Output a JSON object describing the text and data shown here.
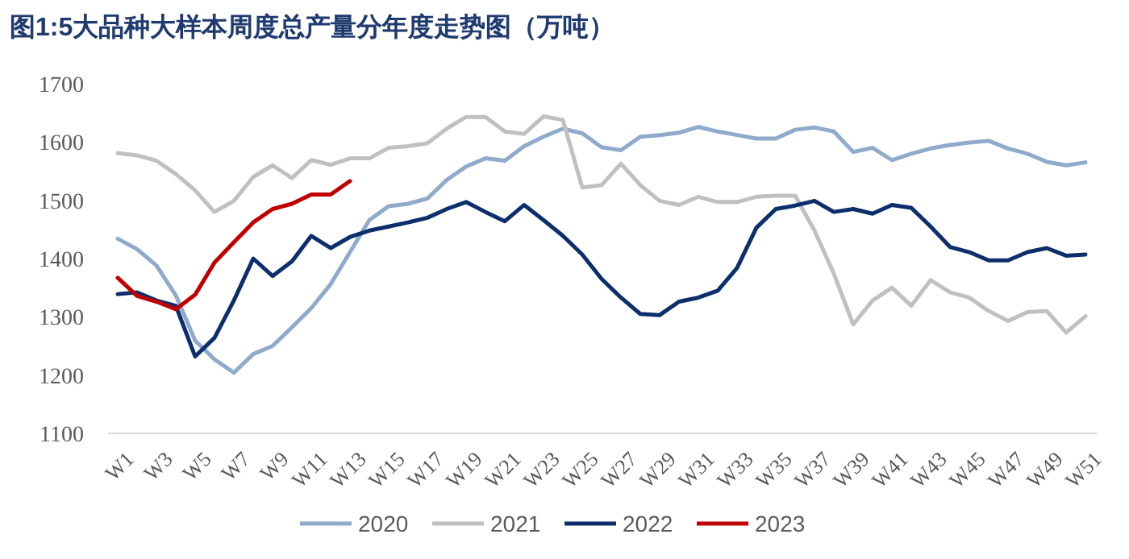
{
  "chart_data": {
    "type": "line",
    "title": "图1:5大品种大样本周度总产量分年度走势图（万吨）",
    "categories": [
      "W1",
      null,
      "W3",
      null,
      "W5",
      null,
      "W7",
      null,
      "W9",
      null,
      "W11",
      null,
      "W13",
      null,
      "W15",
      null,
      "W17",
      null,
      "W19",
      null,
      "W21",
      null,
      "W23",
      null,
      "W25",
      null,
      "W27",
      null,
      "W29",
      null,
      "W31",
      null,
      "W33",
      null,
      "W35",
      null,
      "W37",
      null,
      "W39",
      null,
      "W41",
      null,
      "W43",
      null,
      "W45",
      null,
      "W47",
      null,
      "W49",
      null,
      "W51"
    ],
    "ylim": [
      1100,
      1700
    ],
    "yticks": [
      1100,
      1200,
      1300,
      1400,
      1500,
      1600,
      1700
    ],
    "grid": false,
    "legend": "bottom",
    "marker": "none",
    "line_style": "solid",
    "series": [
      {
        "name": "2020",
        "color": "#8faacb",
        "values": [
          1434,
          1416,
          1388,
          1337,
          1259,
          1227,
          1204,
          1236,
          1250,
          1282,
          1315,
          1356,
          1411,
          1466,
          1490,
          1494,
          1503,
          1535,
          1558,
          1572,
          1568,
          1593,
          1609,
          1623,
          1615,
          1591,
          1586,
          1609,
          1612,
          1616,
          1626,
          1618,
          1612,
          1606,
          1606,
          1621,
          1625,
          1618,
          1583,
          1590,
          1569,
          1580,
          1589,
          1595,
          1599,
          1602,
          1589,
          1580,
          1566,
          1560,
          1565
        ]
      },
      {
        "name": "2021",
        "color": "#c0c0c0",
        "values": [
          1581,
          1577,
          1568,
          1545,
          1517,
          1480,
          1499,
          1540,
          1560,
          1538,
          1569,
          1561,
          1572,
          1572,
          1590,
          1593,
          1598,
          1623,
          1643,
          1643,
          1618,
          1614,
          1644,
          1638,
          1522,
          1526,
          1563,
          1526,
          1499,
          1492,
          1506,
          1497,
          1497,
          1506,
          1508,
          1508,
          1448,
          1374,
          1287,
          1328,
          1350,
          1319,
          1363,
          1342,
          1333,
          1310,
          1293,
          1308,
          1310,
          1273,
          1301
        ]
      },
      {
        "name": "2022",
        "color": "#0c2f6b",
        "values": [
          1339,
          1342,
          1328,
          1319,
          1232,
          1264,
          1328,
          1400,
          1370,
          1395,
          1439,
          1418,
          1437,
          1448,
          1455,
          1462,
          1470,
          1485,
          1497,
          1480,
          1464,
          1492,
          1466,
          1439,
          1407,
          1365,
          1333,
          1305,
          1303,
          1326,
          1333,
          1345,
          1384,
          1453,
          1485,
          1491,
          1499,
          1480,
          1485,
          1477,
          1492,
          1487,
          1455,
          1420,
          1411,
          1397,
          1397,
          1411,
          1418,
          1405,
          1407
        ]
      },
      {
        "name": "2023",
        "color": "#c00000",
        "values": [
          1367,
          1336,
          1326,
          1313,
          1338,
          1393,
          1428,
          1462,
          1485,
          1494,
          1510,
          1510,
          1533,
          null,
          null,
          null,
          null,
          null,
          null,
          null,
          null,
          null,
          null,
          null,
          null,
          null,
          null,
          null,
          null,
          null,
          null,
          null,
          null,
          null,
          null,
          null,
          null,
          null,
          null,
          null,
          null,
          null,
          null,
          null,
          null,
          null,
          null,
          null,
          null,
          null,
          null
        ]
      }
    ]
  }
}
